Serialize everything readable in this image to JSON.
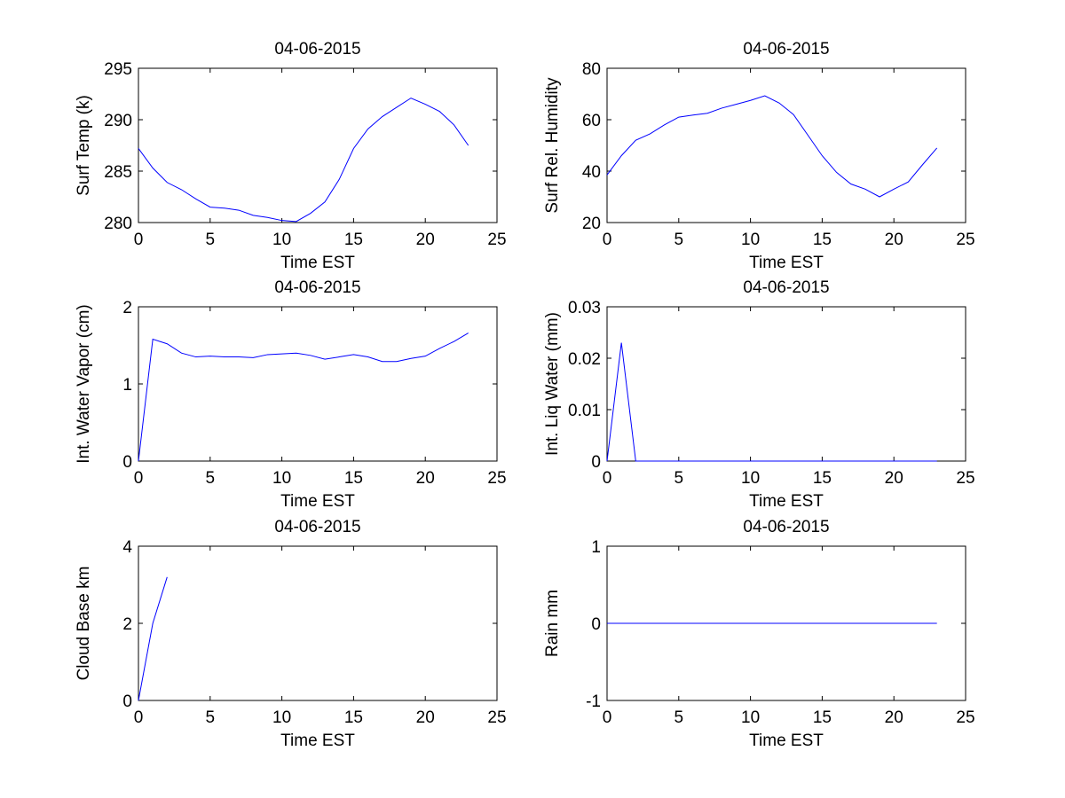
{
  "figure": {
    "background": "#ffffff",
    "line_color": "#0000ff"
  },
  "chart_data": [
    {
      "type": "line",
      "title": "04-06-2015",
      "xlabel": "Time EST",
      "ylabel": "Surf Temp (k)",
      "xlim": [
        0,
        25
      ],
      "ylim": [
        280,
        295
      ],
      "xticks": [
        0,
        5,
        10,
        15,
        20,
        25
      ],
      "yticks": [
        280,
        285,
        290,
        295
      ],
      "grid": false,
      "series": [
        {
          "x": [
            0,
            1,
            2,
            3,
            4,
            5,
            6,
            7,
            8,
            9,
            10,
            11,
            12,
            13,
            14,
            15,
            16,
            17,
            18,
            19,
            20,
            21,
            22,
            23
          ],
          "y": [
            287.2,
            285.3,
            283.9,
            283.2,
            282.3,
            281.5,
            281.4,
            281.2,
            280.7,
            280.5,
            280.2,
            280.1,
            280.9,
            282.0,
            284.2,
            287.2,
            289.1,
            290.3,
            291.2,
            292.1,
            291.5,
            290.8,
            289.5,
            287.5
          ]
        }
      ]
    },
    {
      "type": "line",
      "title": "04-06-2015",
      "xlabel": "Time EST",
      "ylabel": "Surf Rel. Humidity",
      "xlim": [
        0,
        25
      ],
      "ylim": [
        20,
        80
      ],
      "xticks": [
        0,
        5,
        10,
        15,
        20,
        25
      ],
      "yticks": [
        20,
        40,
        60,
        80
      ],
      "grid": false,
      "series": [
        {
          "x": [
            0,
            1,
            2,
            3,
            4,
            5,
            6,
            7,
            8,
            9,
            10,
            11,
            12,
            13,
            14,
            15,
            16,
            17,
            18,
            19,
            20,
            21,
            22,
            23
          ],
          "y": [
            38.5,
            46.0,
            52.0,
            54.5,
            58.0,
            61.0,
            61.8,
            62.5,
            64.5,
            66.0,
            67.5,
            69.3,
            66.5,
            62.0,
            54.0,
            46.0,
            39.5,
            35.0,
            33.0,
            30.0,
            33.0,
            35.8,
            42.5,
            49.0
          ]
        }
      ]
    },
    {
      "type": "line",
      "title": "04-06-2015",
      "xlabel": "Time EST",
      "ylabel": "Int. Water Vapor (cm)",
      "xlim": [
        0,
        25
      ],
      "ylim": [
        0,
        2
      ],
      "xticks": [
        0,
        5,
        10,
        15,
        20,
        25
      ],
      "yticks": [
        0,
        1,
        2
      ],
      "grid": false,
      "series": [
        {
          "x": [
            0,
            1,
            2,
            3,
            4,
            5,
            6,
            7,
            8,
            9,
            10,
            11,
            12,
            13,
            14,
            15,
            16,
            17,
            18,
            19,
            20,
            21,
            22,
            23
          ],
          "y": [
            0.0,
            1.58,
            1.52,
            1.4,
            1.35,
            1.36,
            1.35,
            1.35,
            1.34,
            1.38,
            1.39,
            1.4,
            1.37,
            1.32,
            1.35,
            1.38,
            1.35,
            1.29,
            1.29,
            1.33,
            1.36,
            1.46,
            1.55,
            1.66
          ]
        }
      ]
    },
    {
      "type": "line",
      "title": "04-06-2015",
      "xlabel": "Time EST",
      "ylabel": "Int. Liq Water (mm)",
      "xlim": [
        0,
        25
      ],
      "ylim": [
        0,
        0.03
      ],
      "xticks": [
        0,
        5,
        10,
        15,
        20,
        25
      ],
      "yticks": [
        0,
        0.01,
        0.02,
        0.03
      ],
      "grid": false,
      "series": [
        {
          "x": [
            0,
            1,
            2,
            3,
            4,
            5,
            6,
            7,
            8,
            9,
            10,
            11,
            12,
            13,
            14,
            15,
            16,
            17,
            18,
            19,
            20,
            21,
            22,
            23
          ],
          "y": [
            0,
            0.023,
            0,
            0,
            0,
            0,
            0,
            0,
            0,
            0,
            0,
            0,
            0,
            0,
            0,
            0,
            0,
            0,
            0,
            0,
            0,
            0,
            0,
            0
          ]
        }
      ]
    },
    {
      "type": "line",
      "title": "04-06-2015",
      "xlabel": "Time EST",
      "ylabel": "Cloud Base km",
      "xlim": [
        0,
        25
      ],
      "ylim": [
        0,
        4
      ],
      "xticks": [
        0,
        5,
        10,
        15,
        20,
        25
      ],
      "yticks": [
        0,
        2,
        4
      ],
      "grid": false,
      "series": [
        {
          "x": [
            0,
            1,
            2
          ],
          "y": [
            0.0,
            2.0,
            3.2
          ]
        }
      ]
    },
    {
      "type": "line",
      "title": "04-06-2015",
      "xlabel": "Time EST",
      "ylabel": "Rain mm",
      "xlim": [
        0,
        25
      ],
      "ylim": [
        -1,
        1
      ],
      "xticks": [
        0,
        5,
        10,
        15,
        20,
        25
      ],
      "yticks": [
        -1,
        0,
        1
      ],
      "grid": false,
      "series": [
        {
          "x": [
            0,
            1,
            2,
            3,
            4,
            5,
            6,
            7,
            8,
            9,
            10,
            11,
            12,
            13,
            14,
            15,
            16,
            17,
            18,
            19,
            20,
            21,
            22,
            23
          ],
          "y": [
            0,
            0,
            0,
            0,
            0,
            0,
            0,
            0,
            0,
            0,
            0,
            0,
            0,
            0,
            0,
            0,
            0,
            0,
            0,
            0,
            0,
            0,
            0,
            0
          ]
        }
      ]
    }
  ]
}
